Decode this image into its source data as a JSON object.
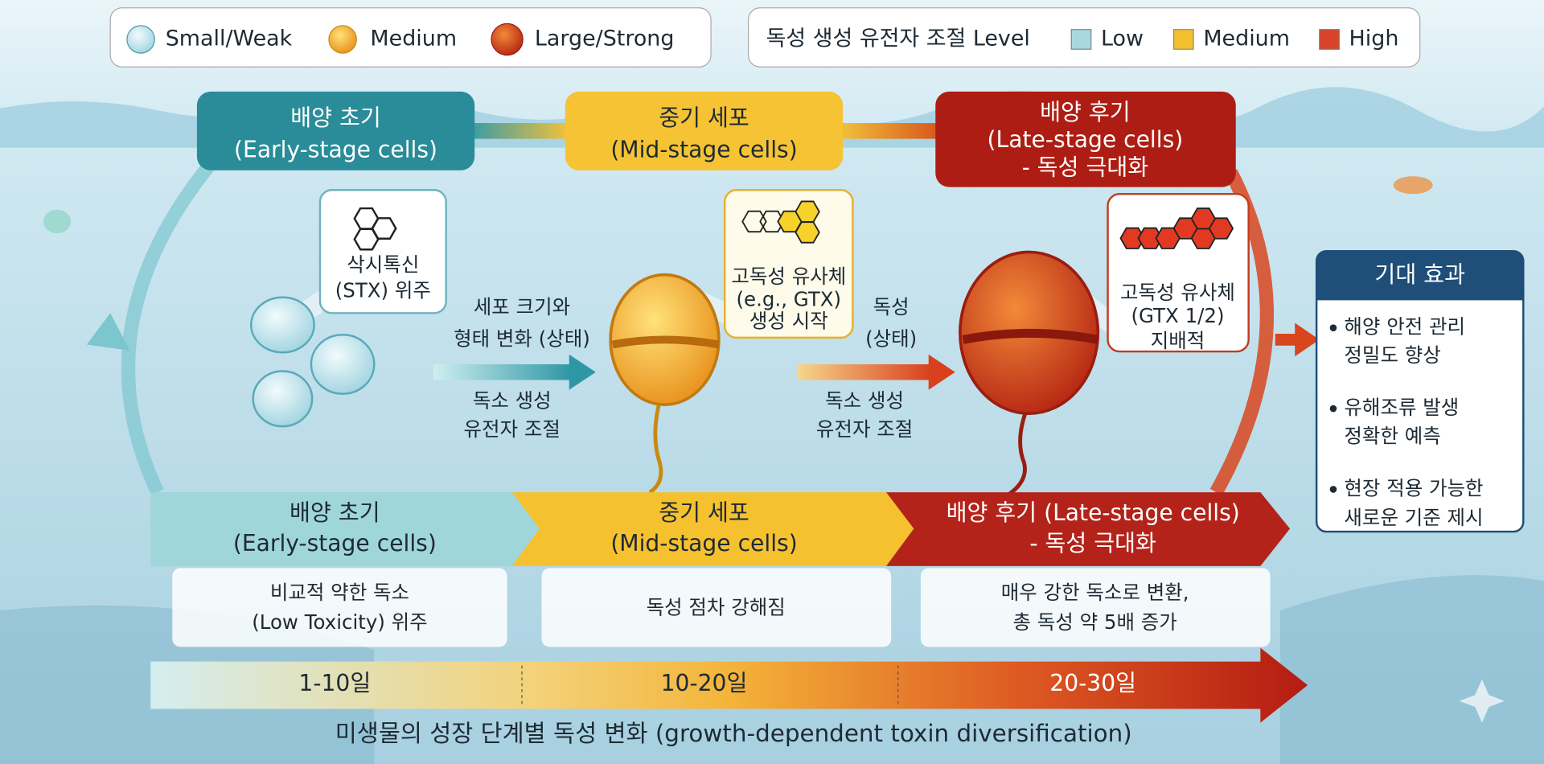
{
  "legend_size": {
    "items": [
      "Small/Weak",
      "Medium",
      "Large/Strong"
    ]
  },
  "legend_level": {
    "title": "독성 생성 유전자 조절 Level",
    "items": [
      "Low",
      "Medium",
      "High"
    ]
  },
  "stages_top": [
    {
      "title": "배양 초기",
      "subtitle": "(Early-stage cells)"
    },
    {
      "title": "중기 세포",
      "subtitle": "(Mid-stage cells)"
    },
    {
      "title": "배양 후기",
      "subtitle": "(Late-stage cells)",
      "note": "- 독성 극대화"
    }
  ],
  "molecules": [
    {
      "lines": [
        "삭시톡신",
        "(STX) 위주"
      ]
    },
    {
      "lines": [
        "고독성 유사체",
        "(e.g., GTX)",
        "생성 시작"
      ]
    },
    {
      "lines": [
        "고독성 유사체",
        "(GTX 1/2)",
        "지배적"
      ]
    }
  ],
  "transitions": [
    {
      "above": [
        "세포 크기와",
        "형태 변화 (상태)"
      ],
      "below": [
        "독소 생성",
        "유전자 조절"
      ]
    },
    {
      "above": [
        "독성",
        "(상태)"
      ],
      "below": [
        "독소 생성",
        "유전자 조절"
      ]
    }
  ],
  "stages_bottom": [
    {
      "title": "배양 초기",
      "subtitle": "(Early-stage cells)",
      "description": [
        "비교적 약한 독소",
        "(Low Toxicity) 위주"
      ]
    },
    {
      "title": "중기 세포",
      "subtitle": "(Mid-stage cells)",
      "description": [
        "독성 점차 강해짐"
      ]
    },
    {
      "title": "배양 후기 (Late-stage cells)",
      "subtitle": "- 독성 극대화",
      "description": [
        "매우 강한 독소로 변환,",
        "총 독성 약 5배 증가"
      ]
    }
  ],
  "timeline": [
    "1-10일",
    "10-20일",
    "20-30일"
  ],
  "expected_effects": {
    "title": "기대 효과",
    "items": [
      [
        "해양 안전 관리",
        "정밀도 향상"
      ],
      [
        "유해조류 발생",
        "정확한 예측"
      ],
      [
        "현장 적용 가능한",
        "새로운 기준 제시"
      ]
    ]
  },
  "footer": {
    "title": "미생물의 성장 단계별 독성 변화 (growth-dependent toxin diversification)"
  }
}
